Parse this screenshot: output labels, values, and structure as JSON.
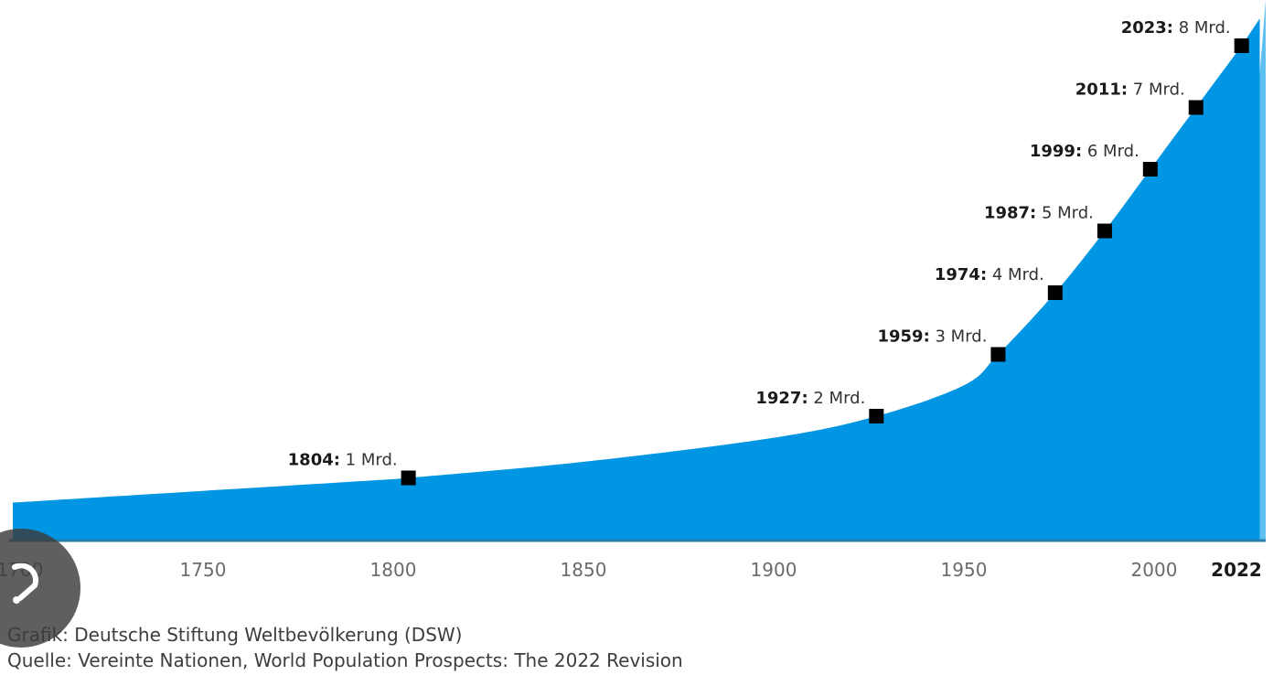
{
  "chart_data": {
    "type": "area",
    "title": "",
    "xlabel": "",
    "ylabel": "",
    "unit": "Mrd.",
    "x_ticks": [
      "1750",
      "1800",
      "1850",
      "1900",
      "1950",
      "2000"
    ],
    "x_tick_partial": "1700",
    "x_tick_highlight": "2022",
    "highlight_start_year": 2022,
    "xlim": [
      1700,
      2030
    ],
    "ylim": [
      0,
      8.8
    ],
    "series": [
      {
        "x": [
          1700,
          1750,
          1800,
          1804,
          1850,
          1900,
          1927,
          1950,
          1959,
          1974,
          1987,
          1999,
          2011,
          2023
        ],
        "values": [
          0.6,
          0.79,
          0.98,
          1.0,
          1.26,
          1.65,
          2.0,
          2.5,
          3.0,
          4.0,
          5.0,
          6.0,
          7.0,
          8.0
        ]
      }
    ],
    "milestones": [
      {
        "year": "1804",
        "value": 1,
        "text": " 1 Mrd."
      },
      {
        "year": "1927",
        "value": 2,
        "text": " 2 Mrd."
      },
      {
        "year": "1959",
        "value": 3,
        "text": " 3 Mrd."
      },
      {
        "year": "1974",
        "value": 4,
        "text": " 4 Mrd."
      },
      {
        "year": "1987",
        "value": 5,
        "text": " 5 Mrd."
      },
      {
        "year": "1999",
        "value": 6,
        "text": " 6 Mrd."
      },
      {
        "year": "2011",
        "value": 7,
        "text": " 7 Mrd."
      },
      {
        "year": "2023",
        "value": 8,
        "text": " 8 Mrd."
      }
    ],
    "colors": {
      "area": "#0096e3",
      "area_projection": "#5ec0f0",
      "marker": "#000000",
      "axis": "#2a7fb0"
    }
  },
  "footer": {
    "grafik": "Grafik: Deutsche Stiftung Weltbevölkerung (DSW)",
    "quelle": "Quelle: Vereinte Nationen, World Population Prospects: The 2022 Revision"
  },
  "overlay": {
    "icon": "lens-search-icon"
  }
}
